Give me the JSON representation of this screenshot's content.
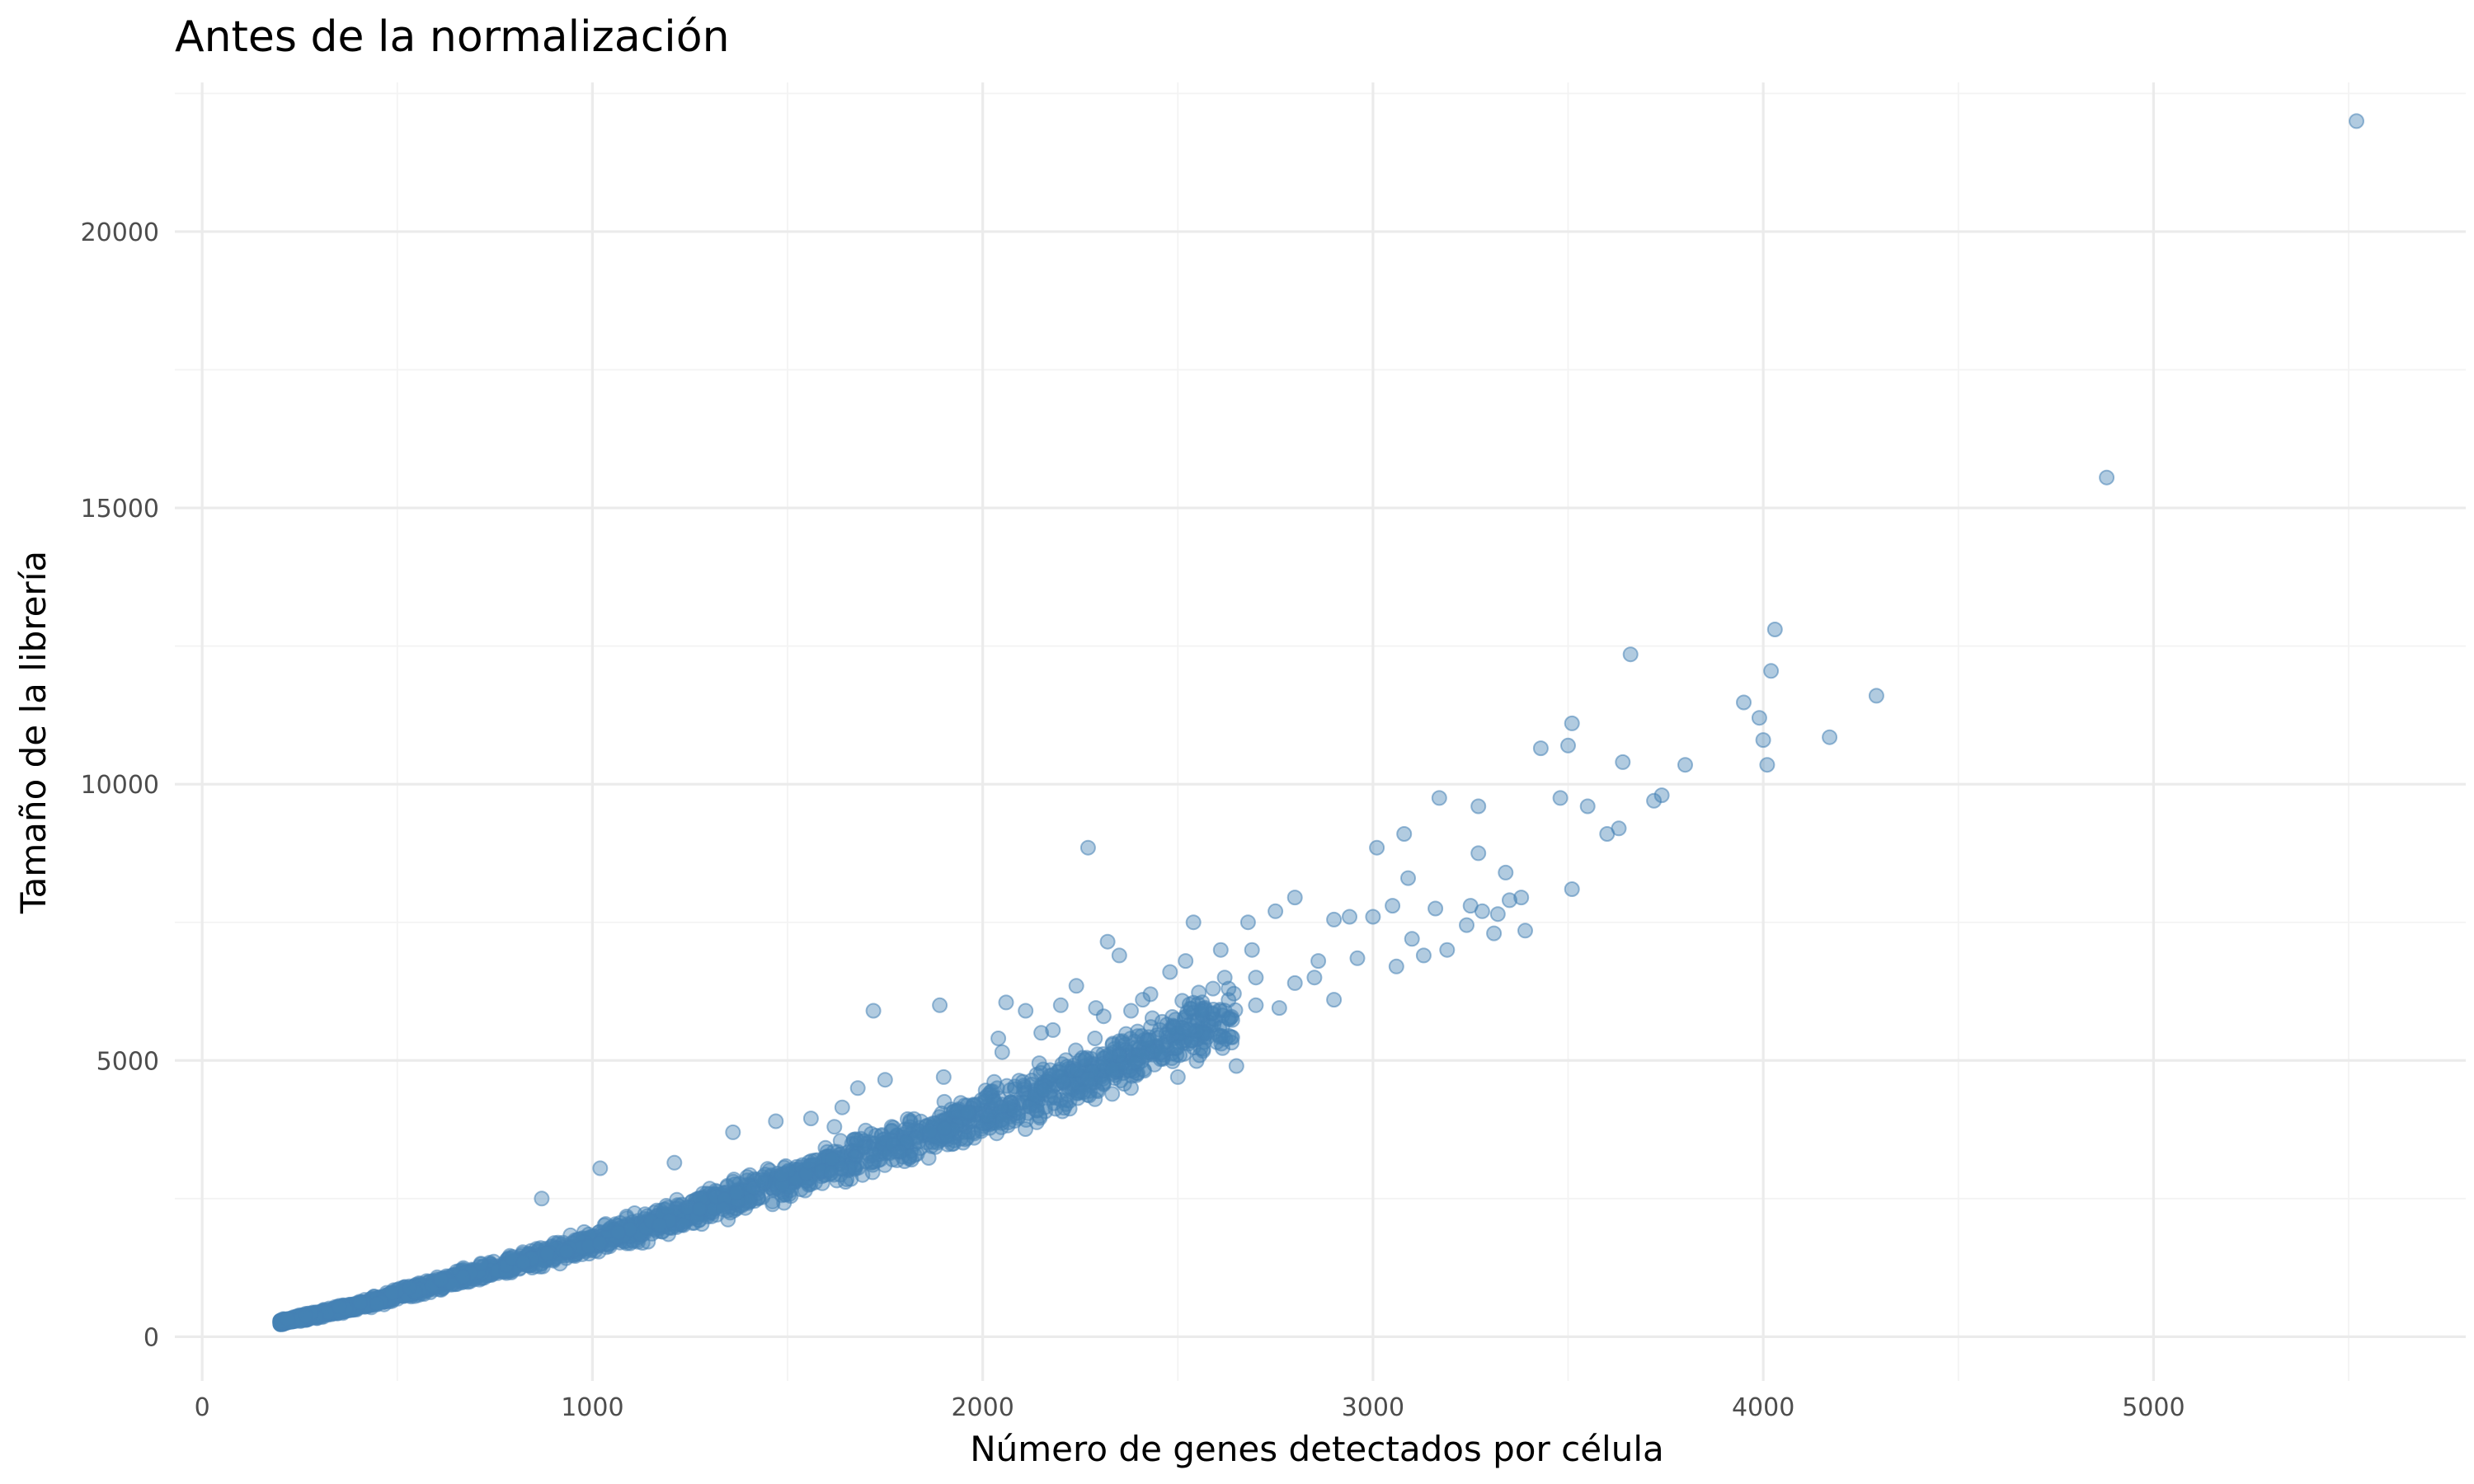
{
  "chart_data": {
    "type": "scatter",
    "title": "Antes de la normalización",
    "xlabel": "Número de genes detectados por célula",
    "ylabel": "Tamaño de la librería",
    "xlim": [
      -70,
      5800
    ],
    "ylim": [
      -800,
      22700
    ],
    "x_ticks": [
      0,
      1000,
      2000,
      3000,
      4000,
      5000
    ],
    "y_ticks": [
      0,
      5000,
      10000,
      15000,
      20000
    ],
    "x_tick_labels": [
      "0",
      "1000",
      "2000",
      "3000",
      "4000",
      "5000"
    ],
    "y_tick_labels": [
      "0",
      "5000",
      "10000",
      "15000",
      "20000"
    ],
    "grid": true,
    "legend": "none",
    "color": "#4682b4",
    "point_alpha": 0.42,
    "series": [
      {
        "x": [
          5520,
          4880,
          4030,
          4020,
          3660,
          4290,
          3950,
          3990,
          4170,
          4000,
          4010,
          3510,
          3500,
          3430,
          3640,
          3800,
          3740,
          3480,
          3550,
          3720,
          3270,
          3170,
          3600,
          3630,
          3080,
          3010,
          2270,
          3270,
          3250,
          3510,
          3090,
          3340,
          3280,
          3160,
          3350,
          3380,
          3320,
          3390,
          3050,
          3000,
          2800,
          2750,
          2680,
          3240,
          3310,
          3190,
          3130,
          3100,
          2940,
          2900,
          2960,
          3060,
          2850,
          1720,
          1890,
          2610,
          2540,
          2690,
          2480,
          2410,
          2350,
          2520,
          2620,
          2700,
          2800,
          2860,
          2200,
          2240,
          2320,
          2900,
          2310,
          2460,
          2110,
          2040,
          2060,
          2150,
          2180,
          2290,
          2380,
          2430,
          2590,
          2560,
          2630,
          2700,
          2760,
          1020,
          870,
          1210,
          1750,
          1680,
          1900,
          2050,
          1360,
          1470,
          1560,
          1640,
          2380,
          2500,
          2650,
          1620
        ],
        "y": [
          22000,
          15550,
          12800,
          12050,
          12350,
          11600,
          11480,
          11200,
          10850,
          10800,
          10350,
          11100,
          10700,
          10650,
          10400,
          10350,
          9800,
          9750,
          9600,
          9700,
          9600,
          9750,
          9100,
          9200,
          9100,
          8850,
          8850,
          8750,
          7800,
          8100,
          8300,
          8400,
          7700,
          7750,
          7900,
          7950,
          7650,
          7350,
          7800,
          7600,
          7950,
          7700,
          7500,
          7450,
          7300,
          7000,
          6900,
          7200,
          7600,
          7550,
          6850,
          6700,
          6500,
          5900,
          6000,
          7000,
          7500,
          7000,
          6600,
          6100,
          6900,
          6800,
          6500,
          6500,
          6400,
          6800,
          6000,
          6350,
          7150,
          6100,
          5800,
          5700,
          5900,
          5400,
          6050,
          5500,
          5550,
          5950,
          5900,
          6200,
          6300,
          5900,
          6300,
          6000,
          5950,
          3050,
          2500,
          3150,
          4650,
          4500,
          4700,
          5150,
          3700,
          3900,
          3950,
          4150,
          4500,
          4700,
          4900,
          3800
        ]
      }
    ],
    "trend_band": {
      "description_free": true,
      "x": [
        200,
        400,
        600,
        800,
        1000,
        1200,
        1400,
        1600,
        1800,
        2000,
        2200,
        2400,
        2600
      ],
      "y_center": [
        260,
        560,
        950,
        1320,
        1700,
        2150,
        2600,
        3080,
        3550,
        4050,
        4550,
        5150,
        5700
      ],
      "y_spread": [
        60,
        110,
        170,
        230,
        300,
        370,
        430,
        500,
        560,
        620,
        680,
        760,
        820
      ]
    }
  }
}
